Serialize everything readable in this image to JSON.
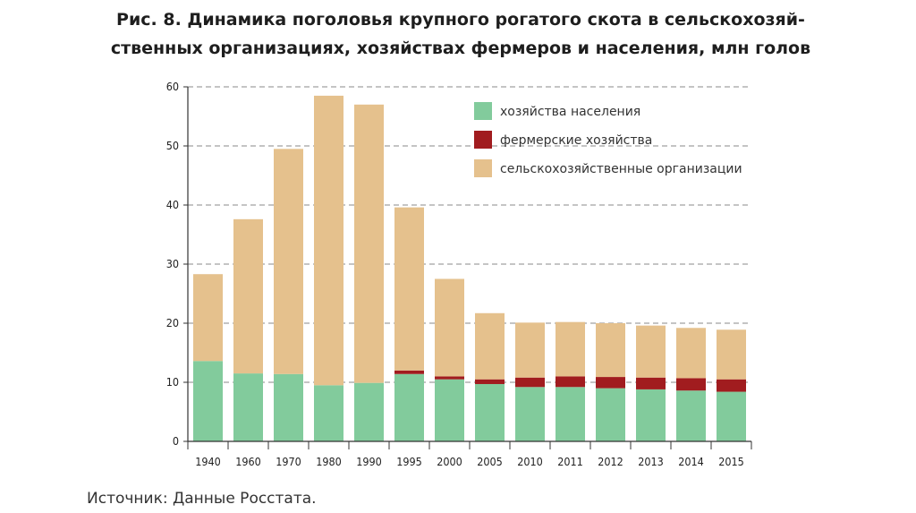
{
  "title_line1": "Рис. 8. Динамика поголовья крупного рогатого скота в сельскохозяй-",
  "title_line2": "ственных организациях, хозяйствах фермеров и населения, млн голов",
  "source": "Источник: Данные Росстата.",
  "chart_data": {
    "type": "bar",
    "stacked": true,
    "categories": [
      "1940",
      "1960",
      "1970",
      "1980",
      "1990",
      "1995",
      "2000",
      "2005",
      "2010",
      "2011",
      "2012",
      "2013",
      "2014",
      "2015"
    ],
    "series": [
      {
        "name": "хозяйства населения",
        "color": "#82cb9c",
        "values": [
          13.6,
          11.5,
          11.4,
          9.5,
          9.9,
          11.4,
          10.5,
          9.7,
          9.2,
          9.2,
          9.0,
          8.8,
          8.6,
          8.4
        ]
      },
      {
        "name": "фермерские хозяйства",
        "color": "#a11c1f",
        "values": [
          0,
          0,
          0,
          0,
          0,
          0.6,
          0.5,
          0.8,
          1.6,
          1.8,
          1.9,
          2.0,
          2.1,
          2.1
        ]
      },
      {
        "name": "сельскохозяйственные организации",
        "color": "#e5c18d",
        "values": [
          14.7,
          26.1,
          38.1,
          49.0,
          47.1,
          27.6,
          16.5,
          11.2,
          9.3,
          9.2,
          9.1,
          8.8,
          8.5,
          8.4
        ]
      }
    ],
    "ylim": [
      0,
      60
    ],
    "yticks": [
      0,
      10,
      20,
      30,
      40,
      50,
      60
    ],
    "grid": true,
    "legend_position": "top-right"
  }
}
